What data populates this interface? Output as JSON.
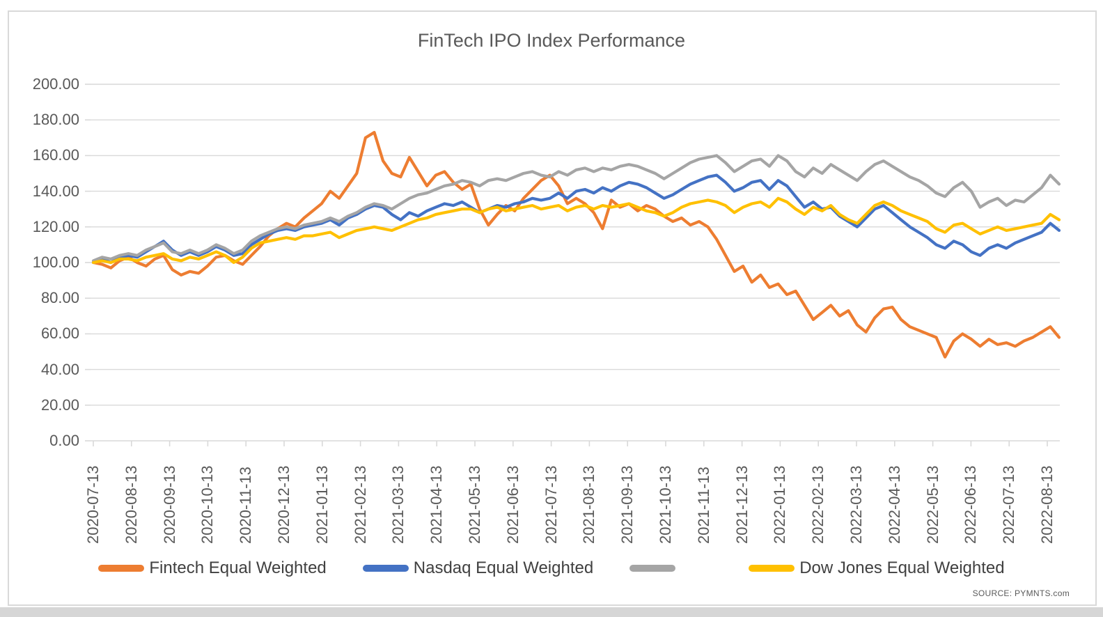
{
  "page": {
    "source_note": "SOURCE: PYMNTS.com"
  },
  "chart_data": {
    "type": "line",
    "title": "FinTech IPO Index Performance",
    "grid": true,
    "legend_position": "bottom",
    "colors": {
      "grid": "#D9D9D9",
      "axis_text": "#595959",
      "title_text": "#595959",
      "legend_text": "#404040",
      "frame_border": "#D9D9D9",
      "bottom_strip": "#D6D6D6"
    },
    "y_axis": {
      "min": 0,
      "max": 200,
      "tick_step": 20,
      "tick_labels": [
        "200.00",
        "180.00",
        "160.00",
        "140.00",
        "120.00",
        "100.00",
        "80.00",
        "60.00",
        "40.00",
        "20.00",
        "0.00"
      ]
    },
    "x_axis": {
      "tick_labels": [
        "2020-07-13",
        "2020-08-13",
        "2020-09-13",
        "2020-10-13",
        "2020-11-13",
        "2020-12-13",
        "2021-01-13",
        "2021-02-13",
        "2021-03-13",
        "2021-04-13",
        "2021-05-13",
        "2021-06-13",
        "2021-07-13",
        "2021-08-13",
        "2021-09-13",
        "2021-10-13",
        "2021-11-13",
        "2021-12-13",
        "2022-01-13",
        "2022-02-13",
        "2022-03-13",
        "2022-04-13",
        "2022-05-13",
        "2022-06-13",
        "2022-07-13",
        "2022-08-13"
      ]
    },
    "series": [
      {
        "id": "fintech",
        "name": "Fintech Equal Weighted",
        "color": "#ED7D31",
        "values": [
          100,
          99,
          97,
          101,
          103,
          100,
          98,
          102,
          104,
          96,
          93,
          95,
          94,
          98,
          103,
          104,
          101,
          99,
          104,
          109,
          115,
          119,
          122,
          120,
          125,
          129,
          133,
          140,
          136,
          143,
          150,
          170,
          173,
          157,
          150,
          148,
          159,
          151,
          143,
          149,
          151,
          145,
          141,
          144,
          130,
          121,
          127,
          132,
          129,
          136,
          141,
          146,
          149,
          143,
          133,
          136,
          133,
          128,
          119,
          135,
          131,
          133,
          129,
          132,
          130,
          126,
          123,
          125,
          121,
          123,
          120,
          113,
          104,
          95,
          98,
          89,
          93,
          86,
          88,
          82,
          84,
          76,
          68,
          72,
          76,
          70,
          73,
          65,
          61,
          69,
          74,
          75,
          68,
          64,
          62,
          60,
          58,
          47,
          56,
          60,
          57,
          53,
          57,
          54,
          55,
          53,
          56,
          58,
          61,
          64,
          58
        ]
      },
      {
        "id": "nasdaq",
        "name": "Nasdaq Equal Weighted",
        "color": "#4472C4",
        "values": [
          100,
          102,
          100,
          103,
          104,
          103,
          106,
          109,
          112,
          107,
          104,
          106,
          104,
          106,
          109,
          107,
          104,
          105,
          110,
          113,
          116,
          118,
          119,
          118,
          120,
          121,
          122,
          124,
          121,
          125,
          127,
          130,
          132,
          131,
          127,
          124,
          128,
          126,
          129,
          131,
          133,
          132,
          134,
          131,
          128,
          130,
          132,
          131,
          133,
          134,
          136,
          135,
          136,
          139,
          136,
          140,
          141,
          139,
          142,
          140,
          143,
          145,
          144,
          142,
          139,
          136,
          138,
          141,
          144,
          146,
          148,
          149,
          145,
          140,
          142,
          145,
          146,
          141,
          146,
          143,
          137,
          131,
          134,
          130,
          131,
          126,
          123,
          120,
          125,
          130,
          132,
          128,
          124,
          120,
          117,
          114,
          110,
          108,
          112,
          110,
          106,
          104,
          108,
          110,
          108,
          111,
          113,
          115,
          117,
          122,
          118
        ]
      },
      {
        "id": "gray",
        "name": "",
        "color": "#A5A5A5",
        "values": [
          101,
          103,
          102,
          104,
          105,
          104,
          107,
          109,
          111,
          106,
          105,
          107,
          105,
          107,
          110,
          108,
          105,
          107,
          112,
          115,
          117,
          119,
          120,
          119,
          121,
          122,
          123,
          125,
          123,
          126,
          128,
          131,
          133,
          132,
          130,
          133,
          136,
          138,
          139,
          141,
          143,
          144,
          146,
          145,
          143,
          146,
          147,
          146,
          148,
          150,
          151,
          149,
          148,
          151,
          149,
          152,
          153,
          151,
          153,
          152,
          154,
          155,
          154,
          152,
          150,
          147,
          150,
          153,
          156,
          158,
          159,
          160,
          156,
          151,
          154,
          157,
          158,
          154,
          160,
          157,
          151,
          148,
          153,
          150,
          155,
          152,
          149,
          146,
          151,
          155,
          157,
          154,
          151,
          148,
          146,
          143,
          139,
          137,
          142,
          145,
          140,
          131,
          134,
          136,
          132,
          135,
          134,
          138,
          142,
          149,
          144
        ]
      },
      {
        "id": "dowjones",
        "name": "Dow Jones Equal Weighted",
        "color": "#FFC000",
        "values": [
          100,
          101,
          100,
          102,
          102,
          101,
          103,
          104,
          105,
          102,
          101,
          103,
          102,
          104,
          106,
          104,
          100,
          103,
          108,
          111,
          112,
          113,
          114,
          113,
          115,
          115,
          116,
          117,
          114,
          116,
          118,
          119,
          120,
          119,
          118,
          120,
          122,
          124,
          125,
          127,
          128,
          129,
          130,
          130,
          128,
          130,
          131,
          129,
          130,
          131,
          132,
          130,
          131,
          132,
          129,
          131,
          132,
          130,
          132,
          131,
          132,
          133,
          131,
          129,
          128,
          126,
          128,
          131,
          133,
          134,
          135,
          134,
          132,
          128,
          131,
          133,
          134,
          131,
          136,
          134,
          130,
          127,
          131,
          129,
          132,
          127,
          124,
          122,
          127,
          132,
          134,
          132,
          129,
          127,
          125,
          123,
          119,
          117,
          121,
          122,
          119,
          116,
          118,
          120,
          118,
          119,
          120,
          121,
          122,
          127,
          124
        ]
      }
    ]
  }
}
